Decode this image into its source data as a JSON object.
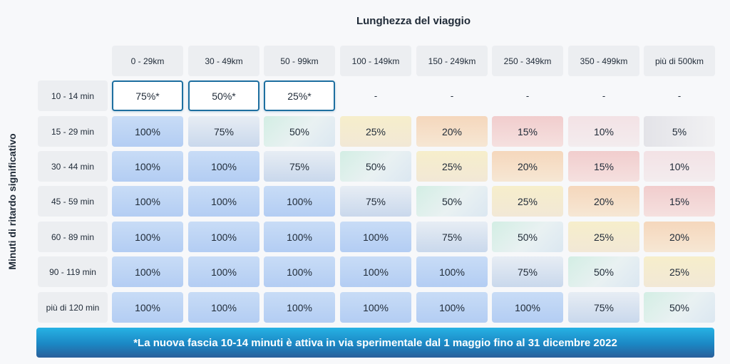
{
  "title_top": "Lunghezza del viaggio",
  "title_side": "Minuti di ritardo significativo",
  "columns": [
    "0 - 29km",
    "30 - 49km",
    "50 - 99km",
    "100 - 149km",
    "150 - 249km",
    "250 - 349km",
    "350 - 499km",
    "più di 500km"
  ],
  "rows": [
    {
      "label": "10 - 14 min",
      "values": [
        "75%*",
        "50%*",
        "25%*",
        "-",
        "-",
        "-",
        "-",
        "-"
      ]
    },
    {
      "label": "15 - 29 min",
      "values": [
        "100%",
        "75%",
        "50%",
        "25%",
        "20%",
        "15%",
        "10%",
        "5%"
      ]
    },
    {
      "label": "30 - 44 min",
      "values": [
        "100%",
        "100%",
        "75%",
        "50%",
        "25%",
        "20%",
        "15%",
        "10%"
      ]
    },
    {
      "label": "45 - 59 min",
      "values": [
        "100%",
        "100%",
        "100%",
        "75%",
        "50%",
        "25%",
        "20%",
        "15%"
      ]
    },
    {
      "label": "60 - 89 min",
      "values": [
        "100%",
        "100%",
        "100%",
        "100%",
        "75%",
        "50%",
        "25%",
        "20%"
      ]
    },
    {
      "label": "90 - 119 min",
      "values": [
        "100%",
        "100%",
        "100%",
        "100%",
        "100%",
        "75%",
        "50%",
        "25%"
      ]
    },
    {
      "label": "più di 120 min",
      "values": [
        "100%",
        "100%",
        "100%",
        "100%",
        "100%",
        "100%",
        "75%",
        "50%"
      ]
    }
  ],
  "footnote": "*La nuova fascia 10-14 minuti è attiva in via sperimentale dal 1 maggio fino al 31 dicembre 2022",
  "colors": {
    "100%": "#bdd3f5",
    "75%": "#d8e3f0",
    "50%": "#dcefe8",
    "25%": "#f5edd0",
    "20%": "#f5dcc4",
    "15%": "#f2d3d2",
    "10%": "#f2e4e7",
    "5%": "#e8e8ec",
    "special_border": "#1e6fa0",
    "banner": "#1e8fcc"
  }
}
